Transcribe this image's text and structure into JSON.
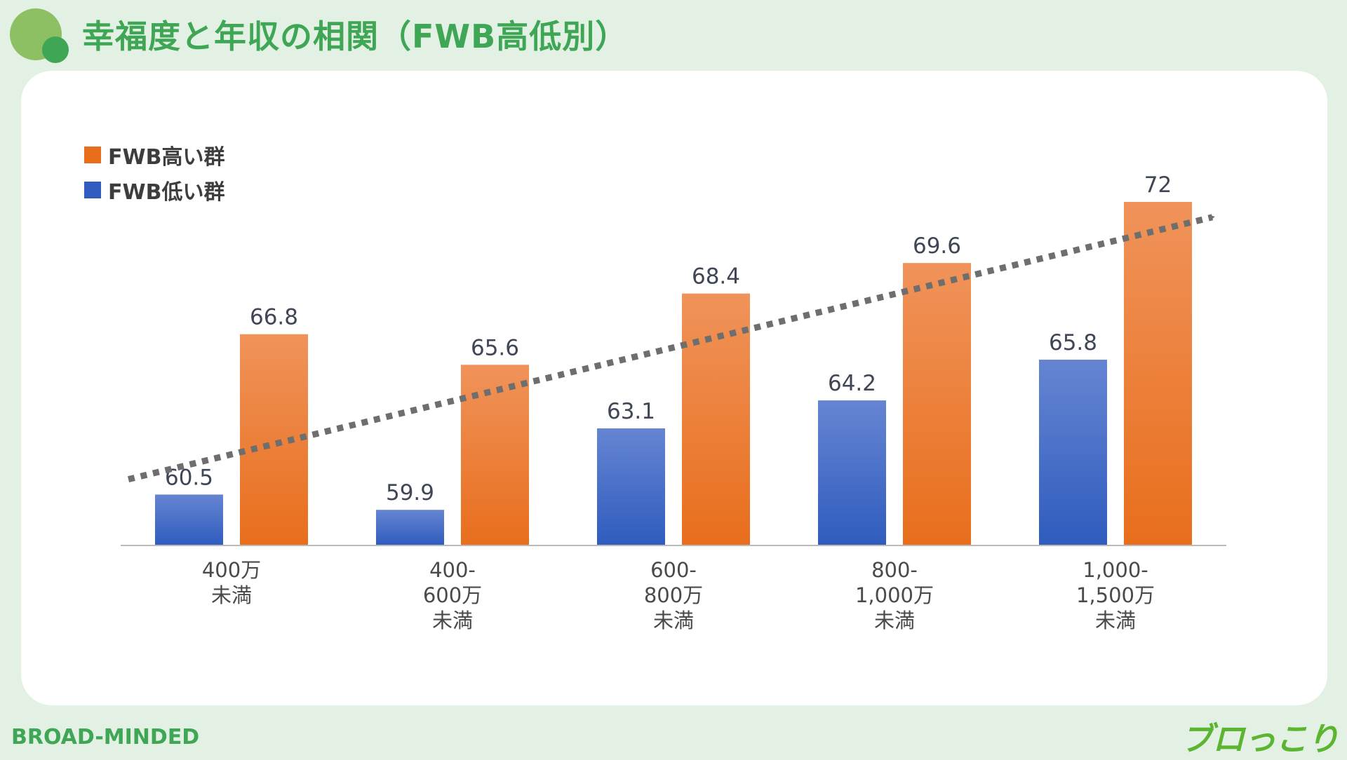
{
  "title": "幸福度と年収の相関（FWB高低別）",
  "brand": "BROAD-MINDED",
  "logo_text": "ブロっこり",
  "colors": {
    "background": "#e2f1e4",
    "accent_green": "#3ea655",
    "high_top": "#f0935a",
    "high_bottom": "#e86e1c",
    "low_top": "#6585d2",
    "low_bottom": "#2f5cbe",
    "trend": "#6e6e6e",
    "axis": "#bbbbbb"
  },
  "chart_data": {
    "type": "bar",
    "categories": [
      [
        "400万",
        "未満"
      ],
      [
        "400-",
        "600万",
        "未満"
      ],
      [
        "600-",
        "800万",
        "未満"
      ],
      [
        "800-",
        "1,000万",
        "未満"
      ],
      [
        "1,000-",
        "1,500万",
        "未満"
      ]
    ],
    "series": [
      {
        "name": "FWB低い群",
        "values": [
          60.5,
          59.9,
          63.1,
          64.2,
          65.8
        ],
        "labels": [
          "60.5",
          "59.9",
          "63.1",
          "64.2",
          "65.8"
        ]
      },
      {
        "name": "FWB高い群",
        "values": [
          66.8,
          65.6,
          68.4,
          69.6,
          72
        ],
        "labels": [
          "66.8",
          "65.6",
          "68.4",
          "69.6",
          "72"
        ]
      }
    ],
    "ylim": [
      58.5,
      72
    ],
    "trend_line": {
      "style": "dotted-arrow",
      "from_value": 61.1,
      "to_value": 71.4
    },
    "legend_position": "top-left"
  }
}
